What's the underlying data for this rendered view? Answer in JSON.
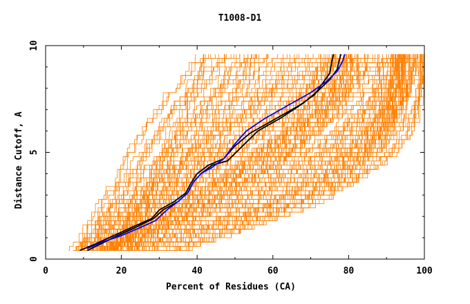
{
  "chart_data": {
    "type": "line",
    "title": "T1008-D1",
    "xlabel": "Percent of Residues (CA)",
    "ylabel": "Distance Cutoff, A",
    "xlim": [
      0,
      100
    ],
    "ylim": [
      0,
      10
    ],
    "x_ticks": [
      0,
      20,
      40,
      60,
      80,
      100
    ],
    "y_ticks": [
      0,
      5,
      10
    ],
    "grid": false,
    "legend": "none",
    "colors": {
      "models": "#ff8000",
      "highlight_black": "#000000",
      "highlight_blue": "#0000ff"
    },
    "background_model_count": 180,
    "highlighted_series": [
      {
        "color": "#000000",
        "x": [
          9,
          13,
          18,
          23,
          28,
          30,
          34,
          37,
          38.5,
          40,
          43,
          47,
          50,
          54,
          60,
          67,
          71,
          73,
          75,
          75.5,
          76
        ],
        "y": [
          0.4,
          0.7,
          1.1,
          1.5,
          1.9,
          2.3,
          2.7,
          3.1,
          3.6,
          4.0,
          4.4,
          4.7,
          5.3,
          5.9,
          6.5,
          7.2,
          7.7,
          8.2,
          8.7,
          9.2,
          9.6
        ]
      },
      {
        "color": "#000000",
        "x": [
          11,
          15,
          19,
          24,
          28.5,
          31,
          35,
          37.5,
          39,
          41,
          44,
          48,
          52,
          56,
          62,
          68,
          72,
          75,
          77,
          77.5,
          78
        ],
        "y": [
          0.4,
          0.75,
          1.1,
          1.5,
          1.9,
          2.3,
          2.7,
          3.1,
          3.6,
          4.0,
          4.4,
          4.6,
          5.3,
          6.0,
          6.6,
          7.3,
          7.9,
          8.4,
          8.9,
          9.3,
          9.6
        ]
      },
      {
        "color": "#0000ff",
        "x": [
          11,
          15,
          20,
          24,
          29,
          32,
          35,
          37.5,
          39,
          41,
          44,
          47,
          50,
          53,
          58,
          64,
          70,
          74,
          77,
          78.5,
          79
        ],
        "y": [
          0.5,
          0.8,
          1.1,
          1.4,
          1.8,
          2.3,
          2.7,
          3.1,
          3.6,
          4.0,
          4.3,
          4.7,
          5.4,
          6.0,
          6.6,
          7.2,
          7.8,
          8.3,
          8.8,
          9.3,
          9.6
        ]
      }
    ]
  }
}
